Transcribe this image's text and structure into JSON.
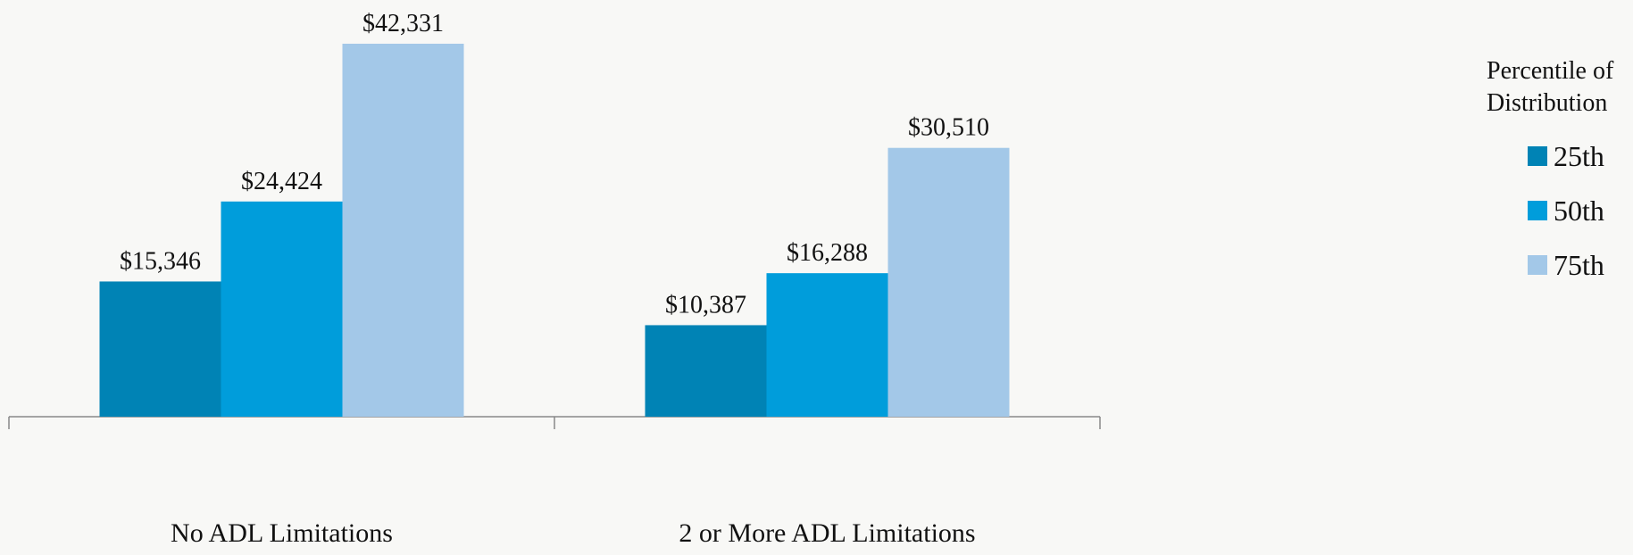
{
  "chart_data": {
    "type": "bar",
    "categories": [
      "No ADL Limitations",
      "2 or More ADL Limitations"
    ],
    "legend_title": "Percentile of Distribution",
    "series": [
      {
        "name": "25th",
        "color": "#0083b5",
        "values": [
          15346,
          10387
        ],
        "value_labels": [
          "$15,346",
          "$10,387"
        ]
      },
      {
        "name": "50th",
        "color": "#009ddb",
        "values": [
          24424,
          16288
        ],
        "value_labels": [
          "$24,424",
          "$16,288"
        ]
      },
      {
        "name": "75th",
        "color": "#a3c8e8",
        "values": [
          42331,
          30510
        ],
        "value_labels": [
          "$42,331",
          "$30,510"
        ]
      }
    ]
  }
}
